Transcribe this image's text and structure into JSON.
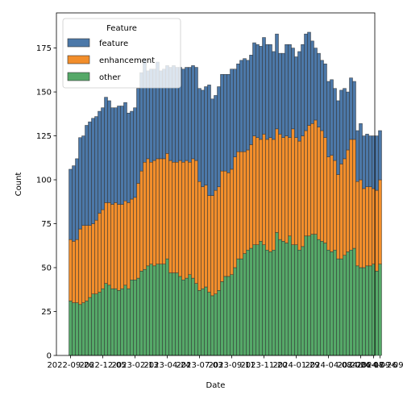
{
  "chart_data": {
    "type": "bar",
    "stacked": true,
    "xlabel": "Date",
    "ylabel": "Count",
    "ylim": [
      0,
      195
    ],
    "y_ticks": [
      0,
      25,
      50,
      75,
      100,
      125,
      150,
      175
    ],
    "x_tick_labels": [
      "2022-09-26",
      "2022-12-05",
      "2023-02-13",
      "2023-04-24",
      "2023-07-03",
      "2023-09-11",
      "2023-11-20",
      "2024-01-29",
      "2024-04-08",
      "2024-06-17",
      "2024-08-26",
      "2024-09-09"
    ],
    "x_tick_positions": [
      0,
      10,
      20,
      30,
      40,
      50,
      60,
      70,
      80,
      90,
      94,
      96
    ],
    "legend": {
      "title": "Feature",
      "placement": "upper-left"
    },
    "series": [
      {
        "name": "other",
        "color": "#55a868",
        "values": [
          31,
          30,
          30,
          29,
          30,
          31,
          33,
          35,
          35,
          36,
          38,
          41,
          40,
          38,
          38,
          37,
          38,
          40,
          38,
          43,
          43,
          44,
          48,
          49,
          51,
          52,
          51,
          52,
          52,
          52,
          55,
          47,
          47,
          47,
          45,
          43,
          44,
          46,
          44,
          41,
          37,
          38,
          39,
          36,
          34,
          35,
          37,
          42,
          45,
          45,
          46,
          50,
          55,
          55,
          58,
          60,
          61,
          63,
          63,
          65,
          63,
          60,
          59,
          60,
          70,
          66,
          65,
          64,
          68,
          63,
          63,
          60,
          62,
          68,
          68,
          69,
          69,
          66,
          65,
          64,
          60,
          59,
          60,
          55,
          55,
          57,
          59,
          60,
          61,
          51,
          50,
          50,
          51,
          51,
          52,
          48,
          52
        ]
      },
      {
        "name": "enhancement",
        "color": "#f28e2b",
        "values": [
          35,
          35,
          36,
          43,
          44,
          43,
          41,
          40,
          42,
          45,
          45,
          46,
          47,
          48,
          49,
          49,
          48,
          48,
          49,
          46,
          47,
          54,
          57,
          61,
          61,
          58,
          60,
          60,
          60,
          60,
          60,
          64,
          63,
          63,
          66,
          67,
          67,
          64,
          68,
          70,
          62,
          58,
          58,
          55,
          57,
          59,
          59,
          63,
          60,
          59,
          60,
          63,
          61,
          61,
          58,
          57,
          59,
          62,
          61,
          58,
          63,
          63,
          65,
          63,
          59,
          60,
          59,
          61,
          56,
          66,
          61,
          62,
          63,
          60,
          63,
          63,
          65,
          64,
          63,
          60,
          53,
          55,
          51,
          48,
          54,
          55,
          58,
          63,
          62,
          48,
          50,
          45,
          45,
          45,
          43,
          46,
          48
        ]
      },
      {
        "name": "feature",
        "color": "#4c78a8",
        "values": [
          40,
          43,
          46,
          52,
          51,
          57,
          59,
          60,
          59,
          58,
          58,
          60,
          58,
          55,
          54,
          56,
          56,
          56,
          51,
          50,
          51,
          54,
          56,
          59,
          50,
          53,
          52,
          55,
          50,
          51,
          50,
          53,
          55,
          54,
          53,
          53,
          53,
          54,
          53,
          53,
          53,
          55,
          56,
          63,
          55,
          54,
          57,
          55,
          55,
          56,
          57,
          50,
          50,
          52,
          53,
          51,
          51,
          53,
          53,
          53,
          55,
          54,
          53,
          50,
          54,
          46,
          48,
          52,
          53,
          46,
          46,
          51,
          52,
          55,
          53,
          47,
          41,
          42,
          40,
          42,
          43,
          43,
          41,
          42,
          42,
          40,
          33,
          35,
          33,
          29,
          32,
          30,
          30,
          29,
          30,
          31,
          28
        ]
      }
    ]
  }
}
